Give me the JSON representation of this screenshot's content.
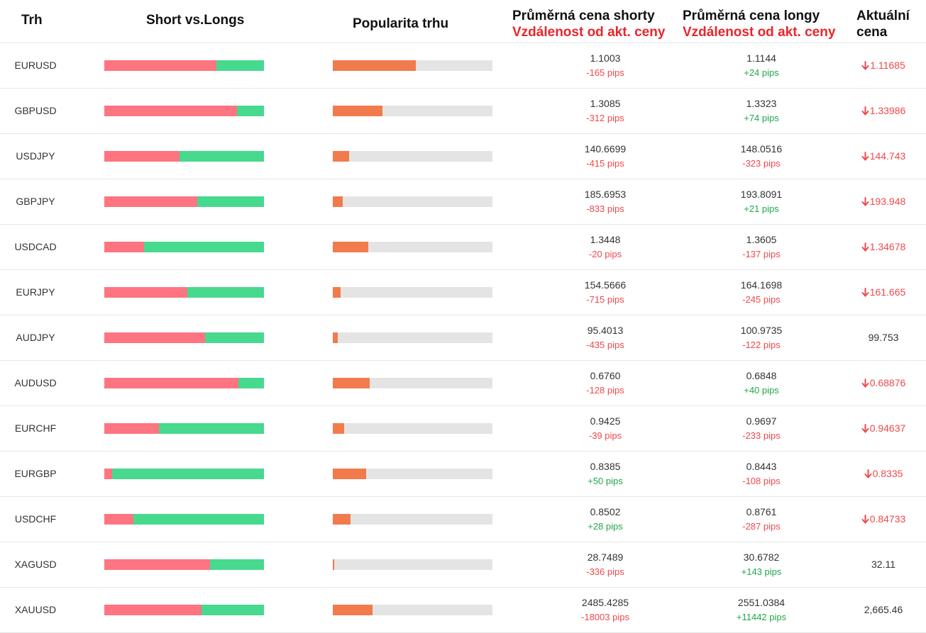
{
  "header": {
    "market": "Trh",
    "short_vs_longs": "Short vs.Longs",
    "popularity": "Popularita trhu",
    "avg_short_title": "Průměrná cena shorty",
    "avg_short_sub": "Vzdálenost od akt. ceny",
    "avg_long_title": "Průměrná cena longy",
    "avg_long_sub": "Vzdálenost od akt. ceny",
    "current_line1": "Aktuální",
    "current_line2": "cena"
  },
  "colors": {
    "short": "#fe7480",
    "long": "#47d98e",
    "popularity": "#f17b4c",
    "track": "#e4e4e4",
    "negative": "#f0484b",
    "positive": "#1fa64a"
  },
  "rows": [
    {
      "symbol": "EURUSD",
      "short_pct": 70,
      "popularity_pct": 52,
      "avg_short": "1.1003",
      "short_dist": "-165 pips",
      "short_dist_sign": "neg",
      "avg_long": "1.1144",
      "long_dist": "+24 pips",
      "long_dist_sign": "pos",
      "current": "1.11685",
      "trend": "down"
    },
    {
      "symbol": "GBPUSD",
      "short_pct": 83,
      "popularity_pct": 31,
      "avg_short": "1.3085",
      "short_dist": "-312 pips",
      "short_dist_sign": "neg",
      "avg_long": "1.3323",
      "long_dist": "+74 pips",
      "long_dist_sign": "pos",
      "current": "1.33986",
      "trend": "down"
    },
    {
      "symbol": "USDJPY",
      "short_pct": 47,
      "popularity_pct": 10,
      "avg_short": "140.6699",
      "short_dist": "-415 pips",
      "short_dist_sign": "neg",
      "avg_long": "148.0516",
      "long_dist": "-323 pips",
      "long_dist_sign": "neg",
      "current": "144.743",
      "trend": "down"
    },
    {
      "symbol": "GBPJPY",
      "short_pct": 58,
      "popularity_pct": 6,
      "avg_short": "185.6953",
      "short_dist": "-833 pips",
      "short_dist_sign": "neg",
      "avg_long": "193.8091",
      "long_dist": "+21 pips",
      "long_dist_sign": "pos",
      "current": "193.948",
      "trend": "down"
    },
    {
      "symbol": "USDCAD",
      "short_pct": 25,
      "popularity_pct": 22,
      "avg_short": "1.3448",
      "short_dist": "-20 pips",
      "short_dist_sign": "neg",
      "avg_long": "1.3605",
      "long_dist": "-137 pips",
      "long_dist_sign": "neg",
      "current": "1.34678",
      "trend": "down"
    },
    {
      "symbol": "EURJPY",
      "short_pct": 52,
      "popularity_pct": 5,
      "avg_short": "154.5666",
      "short_dist": "-715 pips",
      "short_dist_sign": "neg",
      "avg_long": "164.1698",
      "long_dist": "-245 pips",
      "long_dist_sign": "neg",
      "current": "161.665",
      "trend": "down"
    },
    {
      "symbol": "AUDJPY",
      "short_pct": 63,
      "popularity_pct": 3,
      "avg_short": "95.4013",
      "short_dist": "-435 pips",
      "short_dist_sign": "neg",
      "avg_long": "100.9735",
      "long_dist": "-122 pips",
      "long_dist_sign": "neg",
      "current": "99.753",
      "trend": "flat"
    },
    {
      "symbol": "AUDUSD",
      "short_pct": 84,
      "popularity_pct": 23,
      "avg_short": "0.6760",
      "short_dist": "-128 pips",
      "short_dist_sign": "neg",
      "avg_long": "0.6848",
      "long_dist": "+40 pips",
      "long_dist_sign": "pos",
      "current": "0.68876",
      "trend": "down"
    },
    {
      "symbol": "EURCHF",
      "short_pct": 34,
      "popularity_pct": 7,
      "avg_short": "0.9425",
      "short_dist": "-39 pips",
      "short_dist_sign": "neg",
      "avg_long": "0.9697",
      "long_dist": "-233 pips",
      "long_dist_sign": "neg",
      "current": "0.94637",
      "trend": "down"
    },
    {
      "symbol": "EURGBP",
      "short_pct": 5,
      "popularity_pct": 21,
      "avg_short": "0.8385",
      "short_dist": "+50 pips",
      "short_dist_sign": "pos",
      "avg_long": "0.8443",
      "long_dist": "-108 pips",
      "long_dist_sign": "neg",
      "current": "0.8335",
      "trend": "down"
    },
    {
      "symbol": "USDCHF",
      "short_pct": 18,
      "popularity_pct": 11,
      "avg_short": "0.8502",
      "short_dist": "+28 pips",
      "short_dist_sign": "pos",
      "avg_long": "0.8761",
      "long_dist": "-287 pips",
      "long_dist_sign": "neg",
      "current": "0.84733",
      "trend": "down"
    },
    {
      "symbol": "XAGUSD",
      "short_pct": 66,
      "popularity_pct": 1,
      "avg_short": "28.7489",
      "short_dist": "-336 pips",
      "short_dist_sign": "neg",
      "avg_long": "30.6782",
      "long_dist": "+143 pips",
      "long_dist_sign": "pos",
      "current": "32.11",
      "trend": "flat"
    },
    {
      "symbol": "XAUUSD",
      "short_pct": 61,
      "popularity_pct": 25,
      "avg_short": "2485.4285",
      "short_dist": "-18003 pips",
      "short_dist_sign": "neg",
      "avg_long": "2551.0384",
      "long_dist": "+11442 pips",
      "long_dist_sign": "pos",
      "current": "2,665.46",
      "trend": "flat"
    }
  ]
}
